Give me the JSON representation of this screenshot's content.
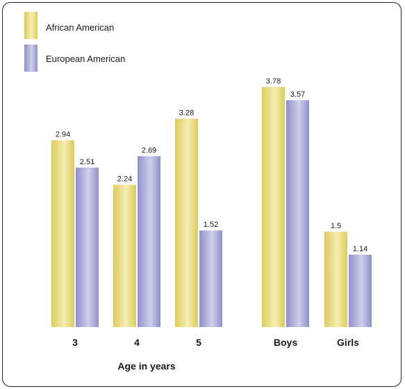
{
  "chart_data": {
    "type": "bar",
    "categories": [
      "3",
      "4",
      "5",
      "Boys",
      "Girls"
    ],
    "series": [
      {
        "name": "African American",
        "values": [
          2.94,
          2.24,
          3.28,
          3.78,
          1.5
        ],
        "color": "#e8d878"
      },
      {
        "name": "European American",
        "values": [
          2.51,
          2.69,
          1.52,
          3.57,
          1.14
        ],
        "color": "#a6a6d6"
      }
    ],
    "value_labels": [
      [
        "2.94",
        "2.24",
        "3.28",
        "3.78",
        "1.5"
      ],
      [
        "2.51",
        "2.69",
        "1.52",
        "3.57",
        "1.14"
      ]
    ],
    "xlabel": "Age in years",
    "ylabel": "",
    "ylim": [
      0,
      4
    ],
    "grid": false,
    "legend_position": "top-left"
  }
}
